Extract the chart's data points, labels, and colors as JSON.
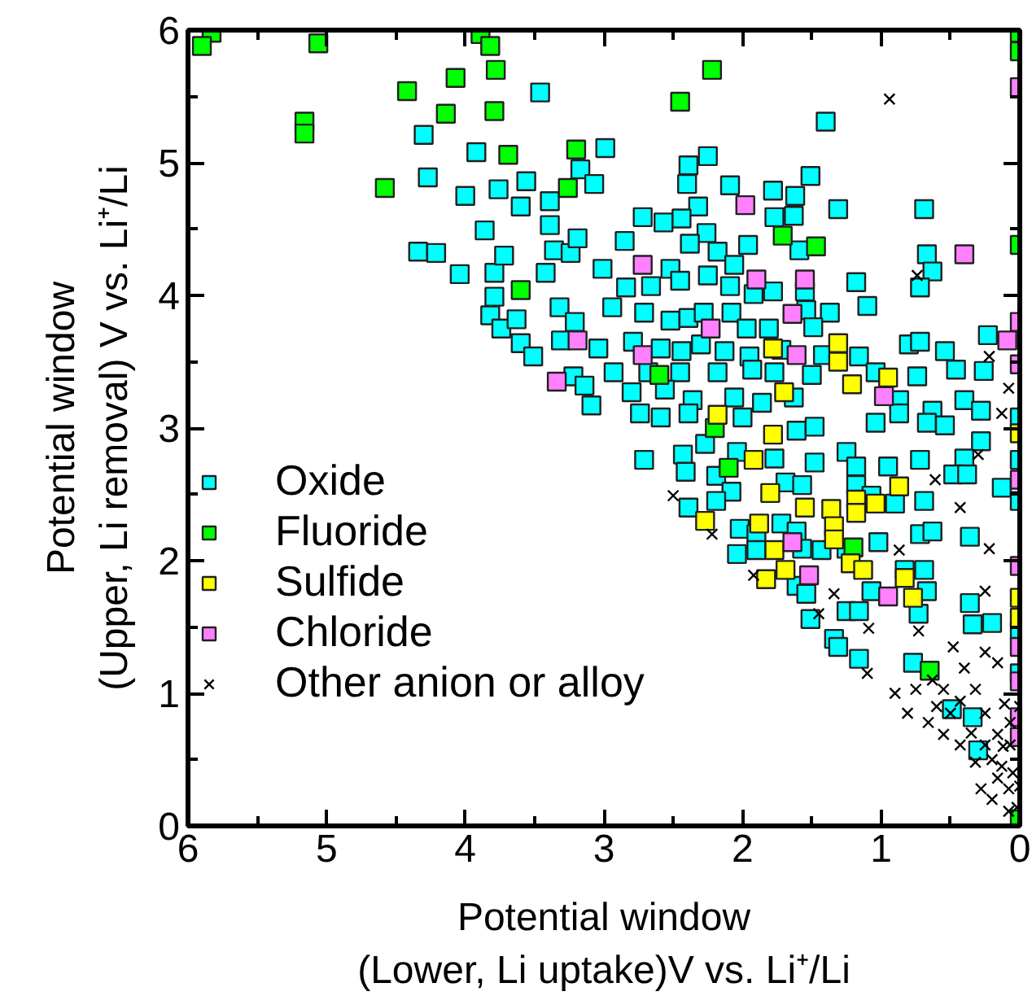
{
  "chart_data": {
    "type": "scatter",
    "xlabel": "Potential window\n(Lower, Li uptake)V vs. Li⁺/Li",
    "ylabel": "Potential window\n(Upper, Li removal) V vs. Li⁺/Li",
    "xlim": [
      6,
      0
    ],
    "ylim": [
      0,
      6
    ],
    "xticks": [
      0,
      1,
      2,
      3,
      4,
      5,
      6
    ],
    "yticks": [
      0,
      1,
      2,
      3,
      4,
      5,
      6
    ],
    "grid": false,
    "legend": "left",
    "series": [
      {
        "name": "Oxide",
        "color": "#00ffff",
        "marker": "square",
        "x": [
          3.46,
          4.3,
          3.92,
          4.27,
          4.0,
          3.76,
          3.56,
          3.6,
          3.39,
          3.86,
          3.39,
          3.17,
          3.07,
          2.99,
          4.34,
          4.21,
          4.04,
          3.79,
          3.72,
          3.42,
          3.36,
          3.24,
          3.19,
          3.79,
          3.82,
          3.74,
          3.63,
          3.6,
          3.51,
          3.32,
          3.31,
          3.21,
          3.22,
          3.14,
          3.09,
          3.04,
          3.01,
          1.4,
          2.25,
          2.39,
          2.4,
          2.09,
          1.78,
          1.51,
          1.62,
          1.31,
          0.69,
          2.72,
          2.32,
          1.77,
          2.57,
          2.44,
          1.63,
          2.26,
          1.96,
          2.85,
          2.38,
          2.18,
          1.59,
          0.67,
          0.63,
          0.72,
          1.18,
          1.1,
          2.06,
          2.52,
          2.84,
          2.66,
          2.45,
          2.25,
          2.09,
          1.92,
          1.78,
          1.55,
          1.37,
          2.94,
          2.71,
          2.52,
          2.39,
          2.28,
          2.08,
          1.97,
          1.81,
          1.54,
          1.49,
          2.79,
          2.59,
          2.44,
          2.3,
          2.13,
          1.95,
          1.72,
          1.42,
          1.16,
          0.8,
          0.72,
          0.54,
          0.23,
          2.93,
          2.68,
          2.45,
          2.18,
          1.93,
          1.77,
          1.5,
          1.04,
          0.74,
          0.46,
          0.26,
          2.8,
          2.56,
          2.36,
          2.06,
          1.86,
          1.63,
          0.87,
          0.63,
          0.4,
          0.28,
          2.74,
          2.59,
          2.39,
          2.0,
          1.61,
          1.48,
          1.04,
          0.87,
          0.67,
          0.54,
          0.4,
          0.28,
          0.13,
          2.71,
          2.43,
          2.27,
          2.04,
          1.77,
          1.48,
          1.25,
          1.18,
          0.95,
          0.72,
          0.48,
          0.38,
          2.41,
          2.19,
          2.08,
          2.39,
          2.19,
          1.69,
          1.57,
          1.18,
          1.07,
          0.9,
          0.69,
          2.02,
          1.9,
          1.72,
          1.61,
          1.57,
          2.04,
          1.9,
          1.43,
          1.25,
          1.02,
          0.83,
          0.69,
          0.72,
          0.63,
          0.36,
          1.61,
          1.54,
          1.25,
          1.16,
          1.07,
          0.67,
          0.36,
          0.73,
          1.51,
          1.34,
          1.31,
          1.16,
          0.77,
          0.34,
          0.2,
          0.49,
          0.34,
          0.3,
          0,
          0,
          0,
          0,
          0
        ],
        "values": [
          5.53,
          5.21,
          5.08,
          4.89,
          4.75,
          4.8,
          4.86,
          4.67,
          4.71,
          4.49,
          4.53,
          4.95,
          4.84,
          5.11,
          4.33,
          4.32,
          4.16,
          4.17,
          4.3,
          4.17,
          4.34,
          4.32,
          4.43,
          3.99,
          3.85,
          3.75,
          3.82,
          3.64,
          3.54,
          3.91,
          3.66,
          3.8,
          3.39,
          3.32,
          3.17,
          3.6,
          4.2,
          5.31,
          5.05,
          4.98,
          4.84,
          4.83,
          4.79,
          4.9,
          4.75,
          4.65,
          4.65,
          4.59,
          4.67,
          4.59,
          4.55,
          4.58,
          4.6,
          4.47,
          4.38,
          4.41,
          4.39,
          4.33,
          4.34,
          4.31,
          4.18,
          4.06,
          4.1,
          3.92,
          4.23,
          4.2,
          4.06,
          4.07,
          4.11,
          4.15,
          4.07,
          4.01,
          4.03,
          4.03,
          3.87,
          3.91,
          3.87,
          3.81,
          3.83,
          3.87,
          3.87,
          3.75,
          3.75,
          3.89,
          3.76,
          3.65,
          3.6,
          3.58,
          3.63,
          3.58,
          3.54,
          3.59,
          3.55,
          3.54,
          3.63,
          3.65,
          3.58,
          3.7,
          3.42,
          3.42,
          3.42,
          3.42,
          3.44,
          3.42,
          3.4,
          3.42,
          3.39,
          3.44,
          3.43,
          3.27,
          3.29,
          3.21,
          3.23,
          3.19,
          3.23,
          3.21,
          3.13,
          3.21,
          3.13,
          3.11,
          3.08,
          3.11,
          3.08,
          2.98,
          3.01,
          3.04,
          3.11,
          3.04,
          3.02,
          2.77,
          2.9,
          2.55,
          2.76,
          2.8,
          2.88,
          2.82,
          2.77,
          2.74,
          2.82,
          2.71,
          2.71,
          2.76,
          2.65,
          2.65,
          2.67,
          2.64,
          2.52,
          2.4,
          2.45,
          2.59,
          2.57,
          2.57,
          2.49,
          2.43,
          2.45,
          2.24,
          2.2,
          2.28,
          2.22,
          2.09,
          2.05,
          2.08,
          2.08,
          2.09,
          2.14,
          1.93,
          1.93,
          2.2,
          2.22,
          2.18,
          1.81,
          1.75,
          1.62,
          1.62,
          1.77,
          1.77,
          1.68,
          1.6,
          1.56,
          1.41,
          1.35,
          1.26,
          1.23,
          1.52,
          1.53,
          0.88,
          0.82,
          0.57,
          3.08,
          2.76,
          2.45,
          1.47,
          1.15
        ]
      },
      {
        "name": "Fluoride",
        "color": "#00ff00",
        "marker": "square",
        "x": [
          5.83,
          5.9,
          5.06,
          5.16,
          5.16,
          4.58,
          4.42,
          4.14,
          4.07,
          3.89,
          3.82,
          3.78,
          3.79,
          3.69,
          3.2,
          3.26,
          3.6,
          2.22,
          2.45,
          1.71,
          1.47,
          2.6,
          2.2,
          2.1,
          1.2,
          0.65,
          0,
          0,
          0,
          0
        ],
        "values": [
          5.98,
          5.88,
          5.9,
          5.31,
          5.22,
          4.81,
          5.54,
          5.37,
          5.64,
          5.97,
          5.88,
          5.7,
          5.39,
          5.06,
          5.1,
          4.81,
          4.04,
          5.7,
          5.46,
          4.45,
          4.37,
          3.4,
          3.0,
          2.7,
          2.1,
          1.17,
          5.98,
          5.84,
          4.38,
          0.05
        ]
      },
      {
        "name": "Sulfide",
        "color": "#ffff00",
        "marker": "square",
        "x": [
          2.18,
          1.78,
          1.92,
          1.8,
          2.27,
          1.88,
          1.55,
          1.36,
          1.18,
          1.04,
          0.87,
          1.34,
          1.34,
          1.18,
          1.77,
          1.69,
          1.83,
          1.22,
          1.13,
          0.83,
          0.77,
          0,
          0,
          0,
          1.78,
          1.31,
          1.31,
          1.21,
          0.95,
          1.7
        ],
        "values": [
          3.1,
          2.95,
          2.76,
          2.51,
          2.3,
          2.28,
          2.4,
          2.39,
          2.46,
          2.43,
          2.56,
          2.26,
          2.16,
          2.36,
          2.08,
          1.93,
          1.86,
          1.98,
          1.93,
          1.87,
          1.72,
          2.96,
          1.72,
          1.57,
          3.6,
          3.64,
          3.5,
          3.33,
          3.38,
          3.27
        ]
      },
      {
        "name": "Chloride",
        "color": "#ff80ff",
        "marker": "square",
        "x": [
          3.19,
          3.34,
          1.98,
          2.72,
          1.9,
          1.55,
          1.64,
          2.23,
          2.72,
          1.61,
          0.98,
          0.4,
          0,
          0,
          0,
          0,
          0,
          0,
          0,
          0,
          0,
          1.64,
          1.52,
          0.95,
          0.09
        ],
        "values": [
          3.66,
          3.35,
          4.68,
          4.23,
          4.12,
          4.12,
          3.86,
          3.75,
          3.55,
          3.55,
          3.24,
          4.31,
          5.57,
          3.8,
          3.48,
          2.61,
          1.96,
          1.35,
          1.09,
          0.82,
          0.67,
          2.14,
          1.89,
          1.73,
          3.66
        ]
      },
      {
        "name": "Other anion or alloy",
        "color": "#000000",
        "marker": "cross",
        "x": [
          0.94,
          0.74,
          0.22,
          0.13,
          2.5,
          2.22,
          1.92,
          1.45,
          1.34,
          1.09,
          0.87,
          0.61,
          0.43,
          0.22,
          0.25,
          0.73,
          1.1,
          0.9,
          0.81,
          0.63,
          0.48,
          0.4,
          0.25,
          0.16,
          0.66,
          0.55,
          0.43,
          0.32,
          0.25,
          0.16,
          0.11,
          0.43,
          0.32,
          0.25,
          0.16,
          0.08,
          0.28,
          0.2,
          0.08,
          0.13,
          0.07,
          0.07,
          0.02,
          0.55,
          0.75,
          0.3,
          0.08,
          0,
          0,
          0.35,
          0.5,
          0.6,
          0.2,
          0.12,
          0.05
        ],
        "values": [
          5.48,
          4.15,
          3.54,
          3.11,
          2.49,
          2.2,
          1.89,
          1.6,
          1.75,
          1.49,
          2.08,
          2.61,
          2.4,
          2.09,
          1.77,
          1.47,
          1.15,
          1.0,
          0.85,
          1.1,
          1.35,
          1.19,
          1.31,
          1.23,
          0.78,
          0.69,
          0.94,
          1.03,
          0.85,
          0.69,
          0.92,
          0.61,
          0.48,
          0.61,
          0.36,
          0.28,
          0.28,
          0.2,
          0.11,
          0.45,
          0.61,
          0.78,
          0.14,
          1.03,
          1.03,
          2.8,
          3.3,
          0.3,
          0.9,
          0.7,
          0.85,
          0.9,
          0.5,
          0.6,
          0.4
        ]
      }
    ]
  }
}
